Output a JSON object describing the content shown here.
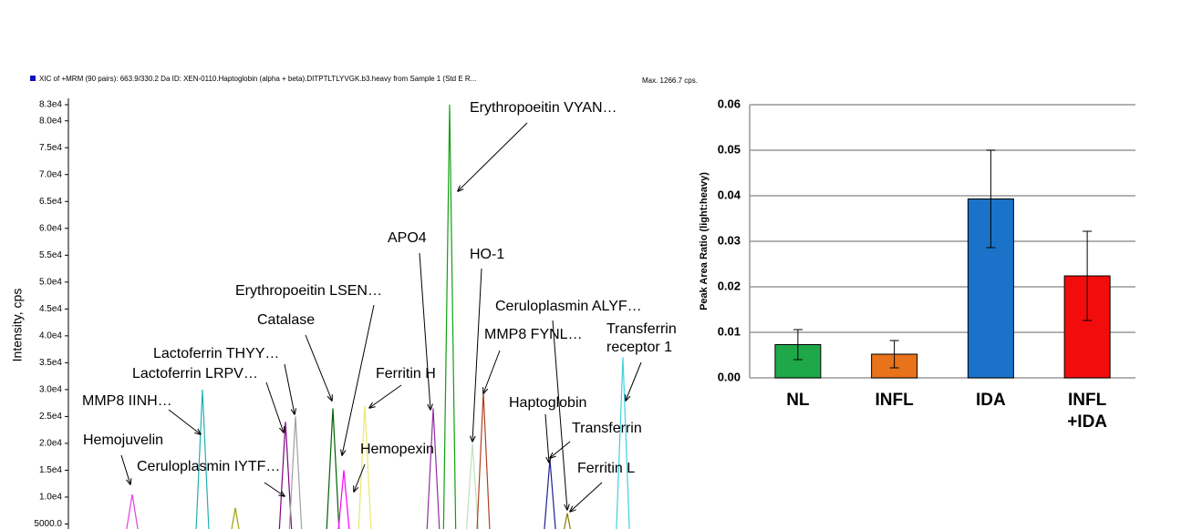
{
  "chart_data": [
    {
      "type": "line",
      "title": "XIC of +MRM (90 pairs): 663.9/330.2 Da ID: XEN-0110.Haptoglobin (alpha + beta).DITPTLTLYVGK.b3.heavy from Sample 1 (Std E R...",
      "subtitle": "Max. 1266.7 cps.",
      "ylabel": "Intensity, cps",
      "xlim": [
        0,
        700
      ],
      "ylim": [
        0,
        83000
      ],
      "yticks": [
        {
          "value": 83000,
          "label": "8.3e4"
        },
        {
          "value": 80000,
          "label": "8.0e4"
        },
        {
          "value": 75000,
          "label": "7.5e4"
        },
        {
          "value": 70000,
          "label": "7.0e4"
        },
        {
          "value": 65000,
          "label": "6.5e4"
        },
        {
          "value": 60000,
          "label": "6.0e4"
        },
        {
          "value": 55000,
          "label": "5.5e4"
        },
        {
          "value": 50000,
          "label": "5.0e4"
        },
        {
          "value": 45000,
          "label": "4.5e4"
        },
        {
          "value": 40000,
          "label": "4.0e4"
        },
        {
          "value": 35000,
          "label": "3.5e4"
        },
        {
          "value": 30000,
          "label": "3.0e4"
        },
        {
          "value": 25000,
          "label": "2.5e4"
        },
        {
          "value": 20000,
          "label": "2.0e4"
        },
        {
          "value": 15000,
          "label": "1.5e4"
        },
        {
          "value": 10000,
          "label": "1.0e4"
        },
        {
          "value": 5000,
          "label": "5000.0"
        }
      ],
      "series": [
        {
          "color": "#e040e0",
          "x": [
            60,
            70,
            80
          ],
          "values": [
            0,
            10500,
            0
          ]
        },
        {
          "color": "#20b0b0",
          "x": [
            139,
            147,
            155
          ],
          "values": [
            0,
            30000,
            0
          ]
        },
        {
          "color": "#a0a000",
          "x": [
            175,
            183,
            191
          ],
          "values": [
            0,
            8000,
            0
          ]
        },
        {
          "color": "#800080",
          "x": [
            230,
            238,
            246
          ],
          "values": [
            0,
            24000,
            0
          ]
        },
        {
          "color": "#a0a0a0",
          "x": [
            241,
            249,
            257
          ],
          "values": [
            0,
            25000,
            0
          ]
        },
        {
          "color": "#006000",
          "x": [
            282,
            290,
            298
          ],
          "values": [
            0,
            26500,
            0
          ]
        },
        {
          "color": "#ff00ff",
          "x": [
            294,
            302,
            310
          ],
          "values": [
            0,
            15000,
            0
          ]
        },
        {
          "color": "#e8e870",
          "x": [
            317,
            325,
            333
          ],
          "values": [
            0,
            27000,
            0
          ]
        },
        {
          "color": "#9030a0",
          "x": [
            392,
            400,
            408
          ],
          "values": [
            0,
            26500,
            0
          ]
        },
        {
          "color": "#10a010",
          "x": [
            411,
            418,
            425
          ],
          "values": [
            0,
            83000,
            0
          ]
        },
        {
          "color": "#c0e0c0",
          "x": [
            435,
            443,
            451
          ],
          "values": [
            0,
            20000,
            0
          ]
        },
        {
          "color": "#b04020",
          "x": [
            447,
            455,
            463
          ],
          "values": [
            0,
            29500,
            0
          ]
        },
        {
          "color": "#202090",
          "x": [
            520,
            528,
            536
          ],
          "values": [
            0,
            17000,
            0
          ]
        },
        {
          "color": "#808000",
          "x": [
            539,
            547,
            555
          ],
          "values": [
            0,
            7000,
            0
          ]
        },
        {
          "color": "#40d0e0",
          "x": [
            600,
            608,
            616
          ],
          "values": [
            0,
            36000,
            0
          ]
        }
      ],
      "annotations": [
        "Erythropoeitin VYAN…",
        "APO4",
        "HO-1",
        "Erythropoeitin LSEN…",
        "Catalase",
        "Ceruloplasmin ALYF…",
        "MMP8 FYNL…",
        "Transferrin\nreceptor 1",
        "Lactoferrin THYY…",
        "Lactoferrin LRPV…",
        "Ferritin H",
        "MMP8 IINH…",
        "Haptoglobin",
        "Transferrin",
        "Hemojuvelin",
        "Hemopexin",
        "Ceruloplasmin IYTF…",
        "Ferritin L"
      ]
    },
    {
      "type": "bar",
      "ylabel": "Peak Area Ratio (light:heavy)",
      "categories": [
        "NL",
        "INFL",
        "IDA",
        "INFL\n+IDA"
      ],
      "values": [
        0.0073,
        0.0052,
        0.0393,
        0.0224
      ],
      "errors": [
        0.0033,
        0.003,
        0.0107,
        0.0098
      ],
      "colors": [
        "#1fa84a",
        "#e8731a",
        "#1a73c8",
        "#f20c0c"
      ],
      "ylim": [
        0,
        0.06
      ],
      "yticks": [
        {
          "value": 0,
          "label": "0.00"
        },
        {
          "value": 0.01,
          "label": "0.01"
        },
        {
          "value": 0.02,
          "label": "0.02"
        },
        {
          "value": 0.03,
          "label": "0.03"
        },
        {
          "value": 0.04,
          "label": "0.04"
        },
        {
          "value": 0.05,
          "label": "0.05"
        },
        {
          "value": 0.06,
          "label": "0.06"
        }
      ],
      "grid": true
    }
  ]
}
